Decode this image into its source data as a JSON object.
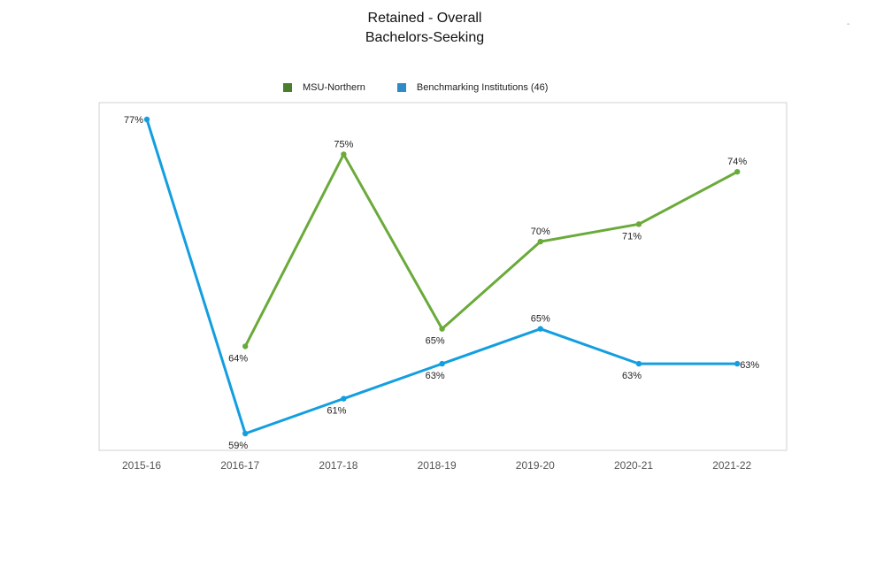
{
  "title_lines": [
    "Retained - Overall",
    "Bachelors-Seeking"
  ],
  "corner_mark": "-",
  "legend": {
    "items": [
      {
        "label": "MSU-Northern",
        "color": "#4a7e2c"
      },
      {
        "label": "Benchmarking Institutions",
        "note": "(46)",
        "color": "#2e8bc8"
      }
    ]
  },
  "chart_data": {
    "type": "line",
    "categories": [
      "2015-16",
      "2016-17",
      "2017-18",
      "2018-19",
      "2019-20",
      "2020-21",
      "2021-22"
    ],
    "ylim": [
      57,
      79
    ],
    "grid": false,
    "legend_position": "top",
    "series": [
      {
        "name": "MSU-Northern",
        "color": "#6aaa3a",
        "values": [
          null,
          64,
          75,
          65,
          70,
          71,
          74
        ],
        "labels": [
          null,
          "64%",
          "75%",
          "65%",
          "70%",
          "71%",
          "74%"
        ],
        "label_side": [
          null,
          "below",
          "above",
          "below",
          "above",
          "below",
          "above"
        ]
      },
      {
        "name": "Benchmarking Institutions",
        "color": "#139ee0",
        "values": [
          77,
          59,
          61,
          63,
          65,
          63,
          63
        ],
        "labels": [
          "77%",
          "59%",
          "61%",
          "63%",
          "65%",
          "63%",
          "63%"
        ],
        "label_side": [
          "left",
          "below",
          "below",
          "below",
          "above",
          "below",
          "right"
        ]
      }
    ]
  }
}
